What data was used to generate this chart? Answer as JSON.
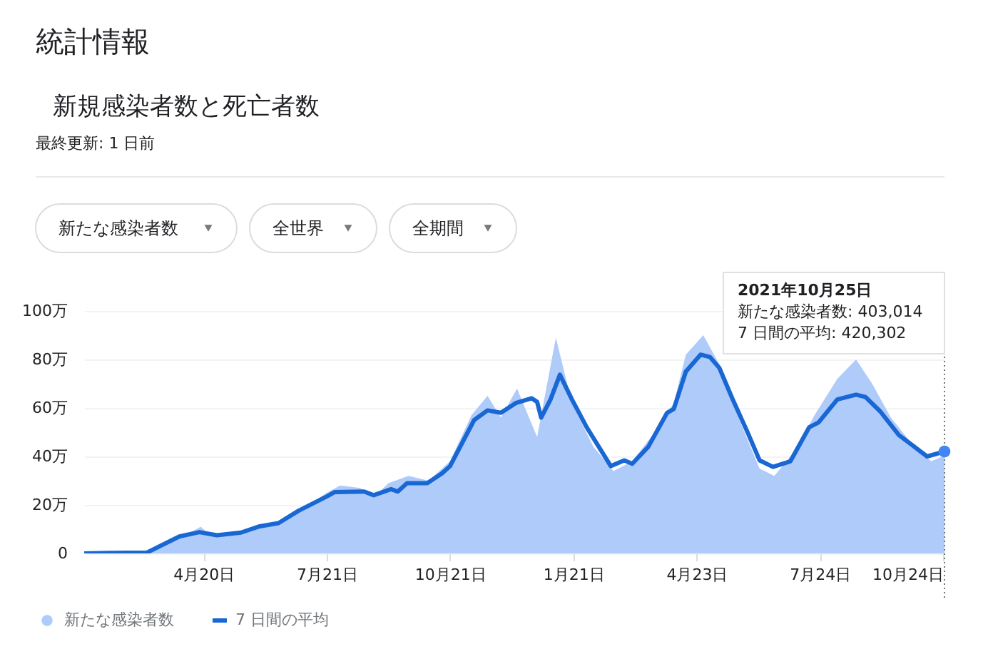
{
  "chart_data": {
    "type": "area",
    "title": "統計情報",
    "subtitle": "新規感染者数と死亡者数",
    "annotations": [
      "最終更新: 1 日前",
      "新たな感染者数",
      "全世界",
      "全期間",
      "2021年10月25日",
      "新たな感染者数: 403,014",
      "7 日間の平均: 420,302"
    ],
    "series": [
      {
        "name": "新たな感染者数",
        "color": "#aecbfa",
        "x": [
          "2020-01-22",
          "2020-02-05",
          "2020-02-13",
          "2020-03-01",
          "2020-03-15",
          "2020-03-31",
          "2020-04-10",
          "2020-04-18",
          "2020-04-25",
          "2020-05-15",
          "2020-06-01",
          "2020-06-20",
          "2020-07-05",
          "2020-07-21",
          "2020-07-31",
          "2020-08-15",
          "2020-08-25",
          "2020-09-05",
          "2020-09-20",
          "2020-10-05",
          "2020-10-21",
          "2020-11-06",
          "2020-11-18",
          "2020-11-28",
          "2020-12-10",
          "2020-12-25",
          "2021-01-08",
          "2021-01-20",
          "2021-02-05",
          "2021-02-20",
          "2021-03-06",
          "2021-03-20",
          "2021-04-06",
          "2021-04-15",
          "2021-04-28",
          "2021-05-10",
          "2021-05-25",
          "2021-06-09",
          "2021-06-20",
          "2021-07-05",
          "2021-07-20",
          "2021-08-06",
          "2021-08-20",
          "2021-09-01",
          "2021-09-15",
          "2021-10-01",
          "2021-10-15",
          "2021-10-25"
        ],
        "values": [
          0,
          0.3,
          0.2,
          0.2,
          1.2,
          7,
          8.5,
          11,
          7.5,
          9,
          11,
          14,
          19,
          25,
          28,
          27,
          23,
          29,
          32,
          30,
          38,
          57,
          65,
          56,
          68,
          48,
          89,
          62,
          44,
          34,
          38,
          48,
          62,
          82,
          90,
          78,
          55,
          35,
          32,
          42,
          57,
          72,
          80,
          70,
          56,
          45,
          38,
          40.3014
        ]
      },
      {
        "name": "7 日間の平均",
        "type": "line",
        "color": "#1967d2",
        "x": [
          "2020-01-22",
          "2020-02-10",
          "2020-03-09",
          "2020-04-02",
          "2020-04-17",
          "2020-04-30",
          "2020-05-18",
          "2020-06-01",
          "2020-06-15",
          "2020-06-30",
          "2020-07-21",
          "2020-07-27",
          "2020-08-18",
          "2020-08-25",
          "2020-09-07",
          "2020-09-12",
          "2020-09-19",
          "2020-10-04",
          "2020-10-15",
          "2020-10-21",
          "2020-11-08",
          "2020-11-18",
          "2020-11-28",
          "2020-12-09",
          "2020-12-21",
          "2020-12-25",
          "2020-12-28",
          "2021-01-04",
          "2021-01-11",
          "2021-01-20",
          "2021-01-31",
          "2021-02-18",
          "2021-02-28",
          "2021-03-06",
          "2021-03-18",
          "2021-04-01",
          "2021-04-06",
          "2021-04-15",
          "2021-04-26",
          "2021-05-03",
          "2021-05-10",
          "2021-05-20",
          "2021-05-31",
          "2021-06-09",
          "2021-06-19",
          "2021-07-02",
          "2021-07-16",
          "2021-07-23",
          "2021-08-06",
          "2021-08-20",
          "2021-08-27",
          "2021-09-07",
          "2021-09-21",
          "2021-10-12",
          "2021-10-25"
        ],
        "values": [
          0,
          0.2,
          0.4,
          7,
          8.8,
          7.5,
          8.6,
          11.2,
          12.5,
          17.6,
          23.5,
          25.3,
          25.5,
          24,
          26.5,
          25.5,
          29,
          29,
          33,
          36,
          55,
          59,
          58,
          62,
          64,
          62.5,
          56,
          63.5,
          73.7,
          63.5,
          52,
          36,
          38.4,
          37,
          44,
          58,
          59.6,
          75,
          82,
          81,
          76.5,
          63.5,
          50,
          38.4,
          35.7,
          38,
          52,
          54,
          63.5,
          65.5,
          64.5,
          58.6,
          48.8,
          40,
          42.0302
        ]
      }
    ],
    "xlim": [
      "2020-01-22",
      "2021-10-25"
    ],
    "xticks": [
      {
        "value": "2020-04-20",
        "label": "4月20日"
      },
      {
        "value": "2020-07-21",
        "label": "7月21日"
      },
      {
        "value": "2020-10-21",
        "label": "10月21日"
      },
      {
        "value": "2021-01-21",
        "label": "1月21日"
      },
      {
        "value": "2021-04-23",
        "label": "4月23日"
      },
      {
        "value": "2021-07-24",
        "label": "7月24日"
      },
      {
        "value": "2021-10-24",
        "label": "10月24日"
      }
    ],
    "ylim": [
      0,
      100
    ],
    "yticks": [
      0,
      {
        "value": 20,
        "label": "20万"
      },
      {
        "value": 40,
        "label": "40万"
      },
      {
        "value": 60,
        "label": "60万"
      },
      {
        "value": 80,
        "label": "80万"
      },
      {
        "value": 100,
        "label": "100万"
      }
    ],
    "ref_lines": [
      {
        "axis": "x",
        "value": "2021-10-25",
        "label": null,
        "color": "#757575",
        "line_style": "dotted"
      }
    ],
    "grid": "y",
    "legend": "bottom"
  }
}
